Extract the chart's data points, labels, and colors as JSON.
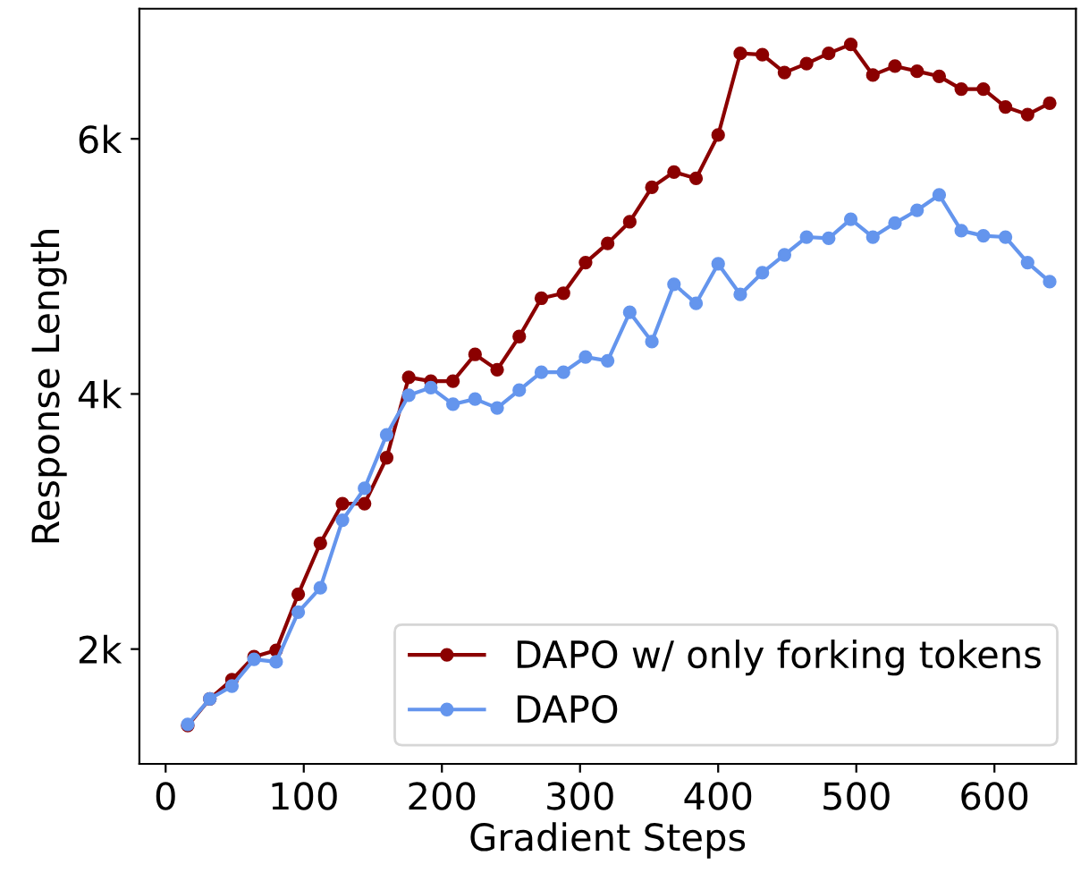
{
  "chart_data": {
    "type": "line",
    "xlabel": "Gradient Steps",
    "ylabel": "Response Length",
    "x": [
      16,
      32,
      48,
      64,
      80,
      96,
      112,
      128,
      144,
      160,
      176,
      192,
      208,
      224,
      240,
      256,
      272,
      288,
      304,
      320,
      336,
      352,
      368,
      384,
      400,
      416,
      432,
      448,
      464,
      480,
      496,
      512,
      528,
      544,
      560,
      576,
      592,
      608,
      624,
      640
    ],
    "series": [
      {
        "name": "DAPO w/ only forking tokens",
        "color": "#8b0000",
        "values": [
          1400,
          1610,
          1760,
          1940,
          1990,
          2430,
          2830,
          3140,
          3140,
          3500,
          4130,
          4100,
          4100,
          4310,
          4190,
          4450,
          4750,
          4790,
          5030,
          5180,
          5350,
          5620,
          5740,
          5690,
          6030,
          6670,
          6660,
          6520,
          6590,
          6670,
          6740,
          6500,
          6570,
          6530,
          6490,
          6390,
          6390,
          6250,
          6190,
          6280
        ]
      },
      {
        "name": "DAPO",
        "color": "#6495ed",
        "values": [
          1410,
          1610,
          1710,
          1920,
          1900,
          2290,
          2480,
          3010,
          3260,
          3680,
          3990,
          4050,
          3920,
          3960,
          3890,
          4030,
          4170,
          4170,
          4290,
          4260,
          4640,
          4410,
          4860,
          4710,
          5020,
          4780,
          4950,
          5090,
          5230,
          5220,
          5370,
          5230,
          5340,
          5440,
          5560,
          5280,
          5240,
          5230,
          5030,
          4880
        ]
      }
    ],
    "xlim": [
      -19,
      659
    ],
    "xticks": [
      0,
      100,
      200,
      300,
      400,
      500,
      600
    ],
    "ylim": [
      1100,
      7020
    ],
    "yticks": [
      {
        "value": 2000,
        "label": "2k"
      },
      {
        "value": 4000,
        "label": "4k"
      },
      {
        "value": 6000,
        "label": "6k"
      }
    ],
    "marker": "circle",
    "line_style": "solid",
    "grid": false,
    "legend": "bottom right"
  }
}
